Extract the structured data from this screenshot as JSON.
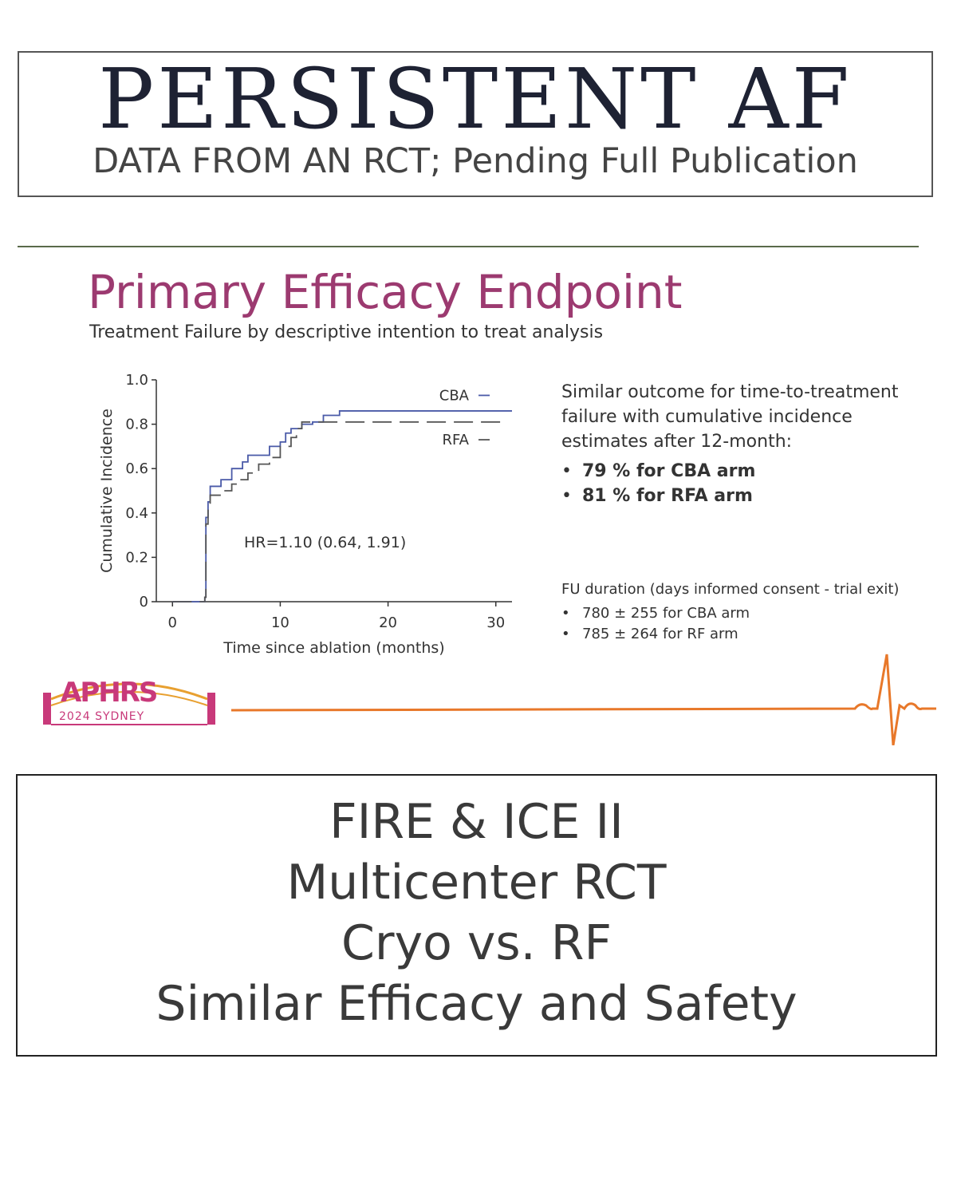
{
  "header": {
    "title": "PERSISTENT AF",
    "subtitle": "DATA FROM AN RCT; Pending Full Publication"
  },
  "slide": {
    "title": "Primary Efficacy Endpoint",
    "subtitle": "Treatment Failure by descriptive intention to treat analysis",
    "side_text": {
      "intro": "Similar outcome for time-to-treatment failure with cumulative incidence estimates after 12-month:",
      "bullets": [
        "79 % for CBA arm",
        "81 % for RFA arm"
      ]
    },
    "fu": {
      "heading": "FU duration (days informed consent - trial exit)",
      "bullets": [
        "780 ± 255 for CBA arm",
        "785 ± 264 for RF arm"
      ]
    },
    "logo": {
      "text": "APHRS",
      "sub": "2024 SYDNEY"
    },
    "colors": {
      "title": "#9c3a70",
      "cba": "#4a5aa8",
      "rfa": "#555555",
      "ecg": "#e8782a",
      "logo": "#c8397a"
    }
  },
  "chart_data": {
    "type": "line",
    "title": "",
    "xlabel": "Time since ablation (months)",
    "ylabel": "Cumulative Incidence",
    "xlim": [
      -1.5,
      31.5
    ],
    "ylim": [
      0,
      1.0
    ],
    "x_ticks": [
      0,
      10,
      20,
      30
    ],
    "x_tick_labels": [
      "0",
      "10",
      "20",
      "30"
    ],
    "y_ticks": [
      0,
      0.2,
      0.4,
      0.6,
      0.8,
      1.0
    ],
    "y_tick_labels": [
      "0",
      "0.2",
      "0.4",
      "0.6",
      "0.8",
      "1.0"
    ],
    "annotation": "HR=1.10 (0.64, 1.91)",
    "legend_position": "top-right",
    "series": [
      {
        "name": "CBA",
        "style": "solid",
        "points": [
          [
            0,
            0
          ],
          [
            3,
            0
          ],
          [
            3,
            0.02
          ],
          [
            3.1,
            0.38
          ],
          [
            3.3,
            0.45
          ],
          [
            3.5,
            0.52
          ],
          [
            4.5,
            0.55
          ],
          [
            5.5,
            0.6
          ],
          [
            6.5,
            0.63
          ],
          [
            7,
            0.66
          ],
          [
            8.5,
            0.66
          ],
          [
            9,
            0.7
          ],
          [
            10,
            0.72
          ],
          [
            10.5,
            0.76
          ],
          [
            11,
            0.78
          ],
          [
            12,
            0.8
          ],
          [
            13,
            0.81
          ],
          [
            14,
            0.84
          ],
          [
            15.5,
            0.86
          ],
          [
            31.5,
            0.86
          ]
        ]
      },
      {
        "name": "RFA",
        "style": "dashed",
        "points": [
          [
            0,
            0
          ],
          [
            3,
            0
          ],
          [
            3,
            0.02
          ],
          [
            3.1,
            0.35
          ],
          [
            3.3,
            0.42
          ],
          [
            3.5,
            0.48
          ],
          [
            4.5,
            0.5
          ],
          [
            5.5,
            0.53
          ],
          [
            6,
            0.55
          ],
          [
            7,
            0.58
          ],
          [
            8,
            0.62
          ],
          [
            9,
            0.65
          ],
          [
            10,
            0.7
          ],
          [
            11,
            0.74
          ],
          [
            11.5,
            0.78
          ],
          [
            12,
            0.81
          ],
          [
            31,
            0.81
          ]
        ]
      }
    ]
  },
  "footer": {
    "lines": [
      "FIRE & ICE II",
      "Multicenter RCT",
      "Cryo vs. RF",
      "Similar Efficacy and Safety"
    ]
  }
}
